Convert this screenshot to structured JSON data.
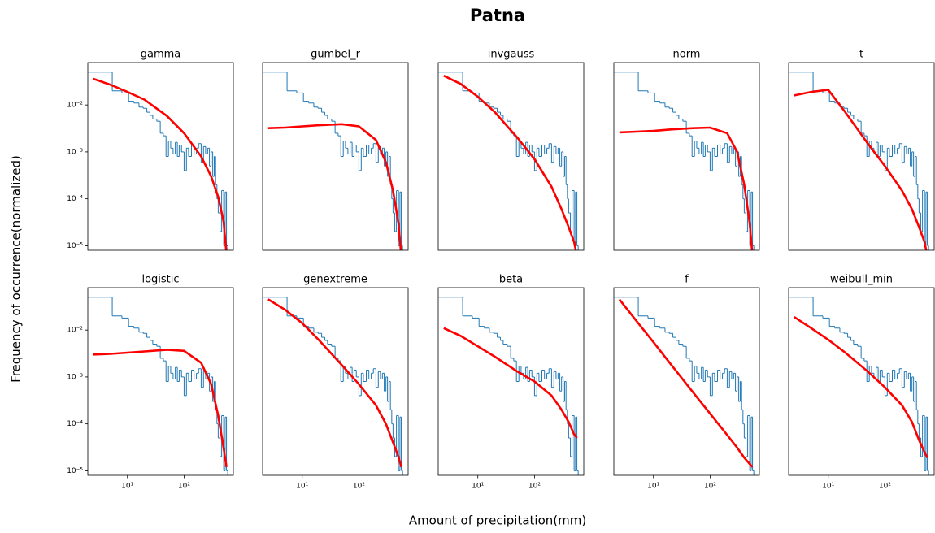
{
  "chart_data": {
    "type": "histogram",
    "title": "Patna",
    "x_label": "Amount of precipitation(mm)",
    "y_label": "Frequency of occurrence(normalized)",
    "log_x": true,
    "log_y": true,
    "xlim": [
      2,
      740
    ],
    "ylim": [
      8e-06,
      0.08
    ],
    "xticks": [
      {
        "value": 10,
        "label": "10¹"
      },
      {
        "value": 100,
        "label": "10²"
      }
    ],
    "yticks": [
      {
        "value": 0.01,
        "label": "10⁻²"
      },
      {
        "value": 0.001,
        "label": "10⁻³"
      },
      {
        "value": 0.0001,
        "label": "10⁻⁴"
      },
      {
        "value": 1e-05,
        "label": "10⁻⁵"
      }
    ],
    "hist_color": "#1f77b4",
    "bins": [
      1,
      5.4,
      8,
      10.5,
      13,
      16,
      19,
      22,
      25,
      28,
      33,
      38,
      43,
      48,
      53,
      58,
      64,
      70,
      76,
      82,
      90,
      100,
      110,
      120,
      135,
      150,
      165,
      180,
      200,
      220,
      240,
      260,
      280,
      300,
      320,
      340,
      360,
      380,
      400,
      430,
      460,
      500,
      530,
      560,
      590
    ],
    "counts": [
      0.05,
      0.02,
      0.018,
      0.012,
      0.011,
      0.009,
      0.0085,
      0.007,
      0.006,
      0.005,
      0.0045,
      0.0025,
      0.0022,
      0.0008,
      0.0017,
      0.0012,
      0.0009,
      0.0016,
      0.0008,
      0.0014,
      0.001,
      0.0004,
      0.0012,
      0.0008,
      0.0014,
      0.0009,
      0.0012,
      0.0015,
      0.0006,
      0.0013,
      0.0009,
      0.0012,
      0.0005,
      0.001,
      0.0003,
      0.0008,
      0.0002,
      0.0001,
      5e-05,
      2e-05,
      0.00015,
      1e-05,
      0.00014,
      1e-05
    ],
    "fit_x": [
      2.5,
      5,
      10,
      20,
      50,
      100,
      200,
      300,
      400,
      500,
      560
    ],
    "fits": [
      {
        "name": "gamma",
        "color": "#ff0000",
        "values": [
          0.036,
          0.027,
          0.019,
          0.013,
          0.0058,
          0.0025,
          0.0008,
          0.0003,
          0.00011,
          3.2e-05,
          6.5e-06
        ]
      },
      {
        "name": "gumbel_r",
        "color": "#ff0000",
        "values": [
          0.0032,
          0.0033,
          0.0035,
          0.0037,
          0.0039,
          0.0035,
          0.0018,
          0.0006,
          0.00015,
          3e-05,
          6e-06
        ]
      },
      {
        "name": "invgauss",
        "color": "#ff0000",
        "values": [
          0.042,
          0.028,
          0.015,
          0.007,
          0.002,
          0.0007,
          0.00018,
          6e-05,
          2.5e-05,
          1.2e-05,
          6e-06
        ]
      },
      {
        "name": "norm",
        "color": "#ff0000",
        "values": [
          0.0026,
          0.0027,
          0.0028,
          0.003,
          0.0032,
          0.0033,
          0.0025,
          0.001,
          0.0002,
          3e-05,
          6e-06
        ]
      },
      {
        "name": "t",
        "color": "#ff0000",
        "values": [
          0.016,
          0.019,
          0.021,
          0.007,
          0.0015,
          0.0005,
          0.00015,
          6e-05,
          2.5e-05,
          1.2e-05,
          6e-06
        ]
      },
      {
        "name": "logistic",
        "color": "#ff0000",
        "values": [
          0.003,
          0.0031,
          0.0033,
          0.0035,
          0.0038,
          0.0036,
          0.002,
          0.0007,
          0.00015,
          3e-05,
          1.2e-05
        ]
      },
      {
        "name": "genextreme",
        "color": "#ff0000",
        "values": [
          0.045,
          0.027,
          0.014,
          0.006,
          0.0018,
          0.0007,
          0.00025,
          0.0001,
          4e-05,
          2e-05,
          1.2e-05
        ]
      },
      {
        "name": "beta",
        "color": "#ff0000",
        "values": [
          0.011,
          0.0075,
          0.0045,
          0.0027,
          0.0013,
          0.0008,
          0.0004,
          0.0002,
          0.00011,
          6e-05,
          5e-05
        ]
      },
      {
        "name": "f",
        "color": "#ff0000",
        "values": [
          0.045,
          0.0157,
          0.0055,
          0.0019,
          0.00047,
          0.000165,
          5.8e-05,
          3.1e-05,
          1.9e-05,
          1.4e-05,
          1.2e-05
        ]
      },
      {
        "name": "weibull_min",
        "color": "#ff0000",
        "values": [
          0.019,
          0.011,
          0.0062,
          0.0033,
          0.0013,
          0.0006,
          0.00025,
          0.00011,
          4.5e-05,
          2.5e-05,
          1.9e-05
        ]
      }
    ]
  }
}
